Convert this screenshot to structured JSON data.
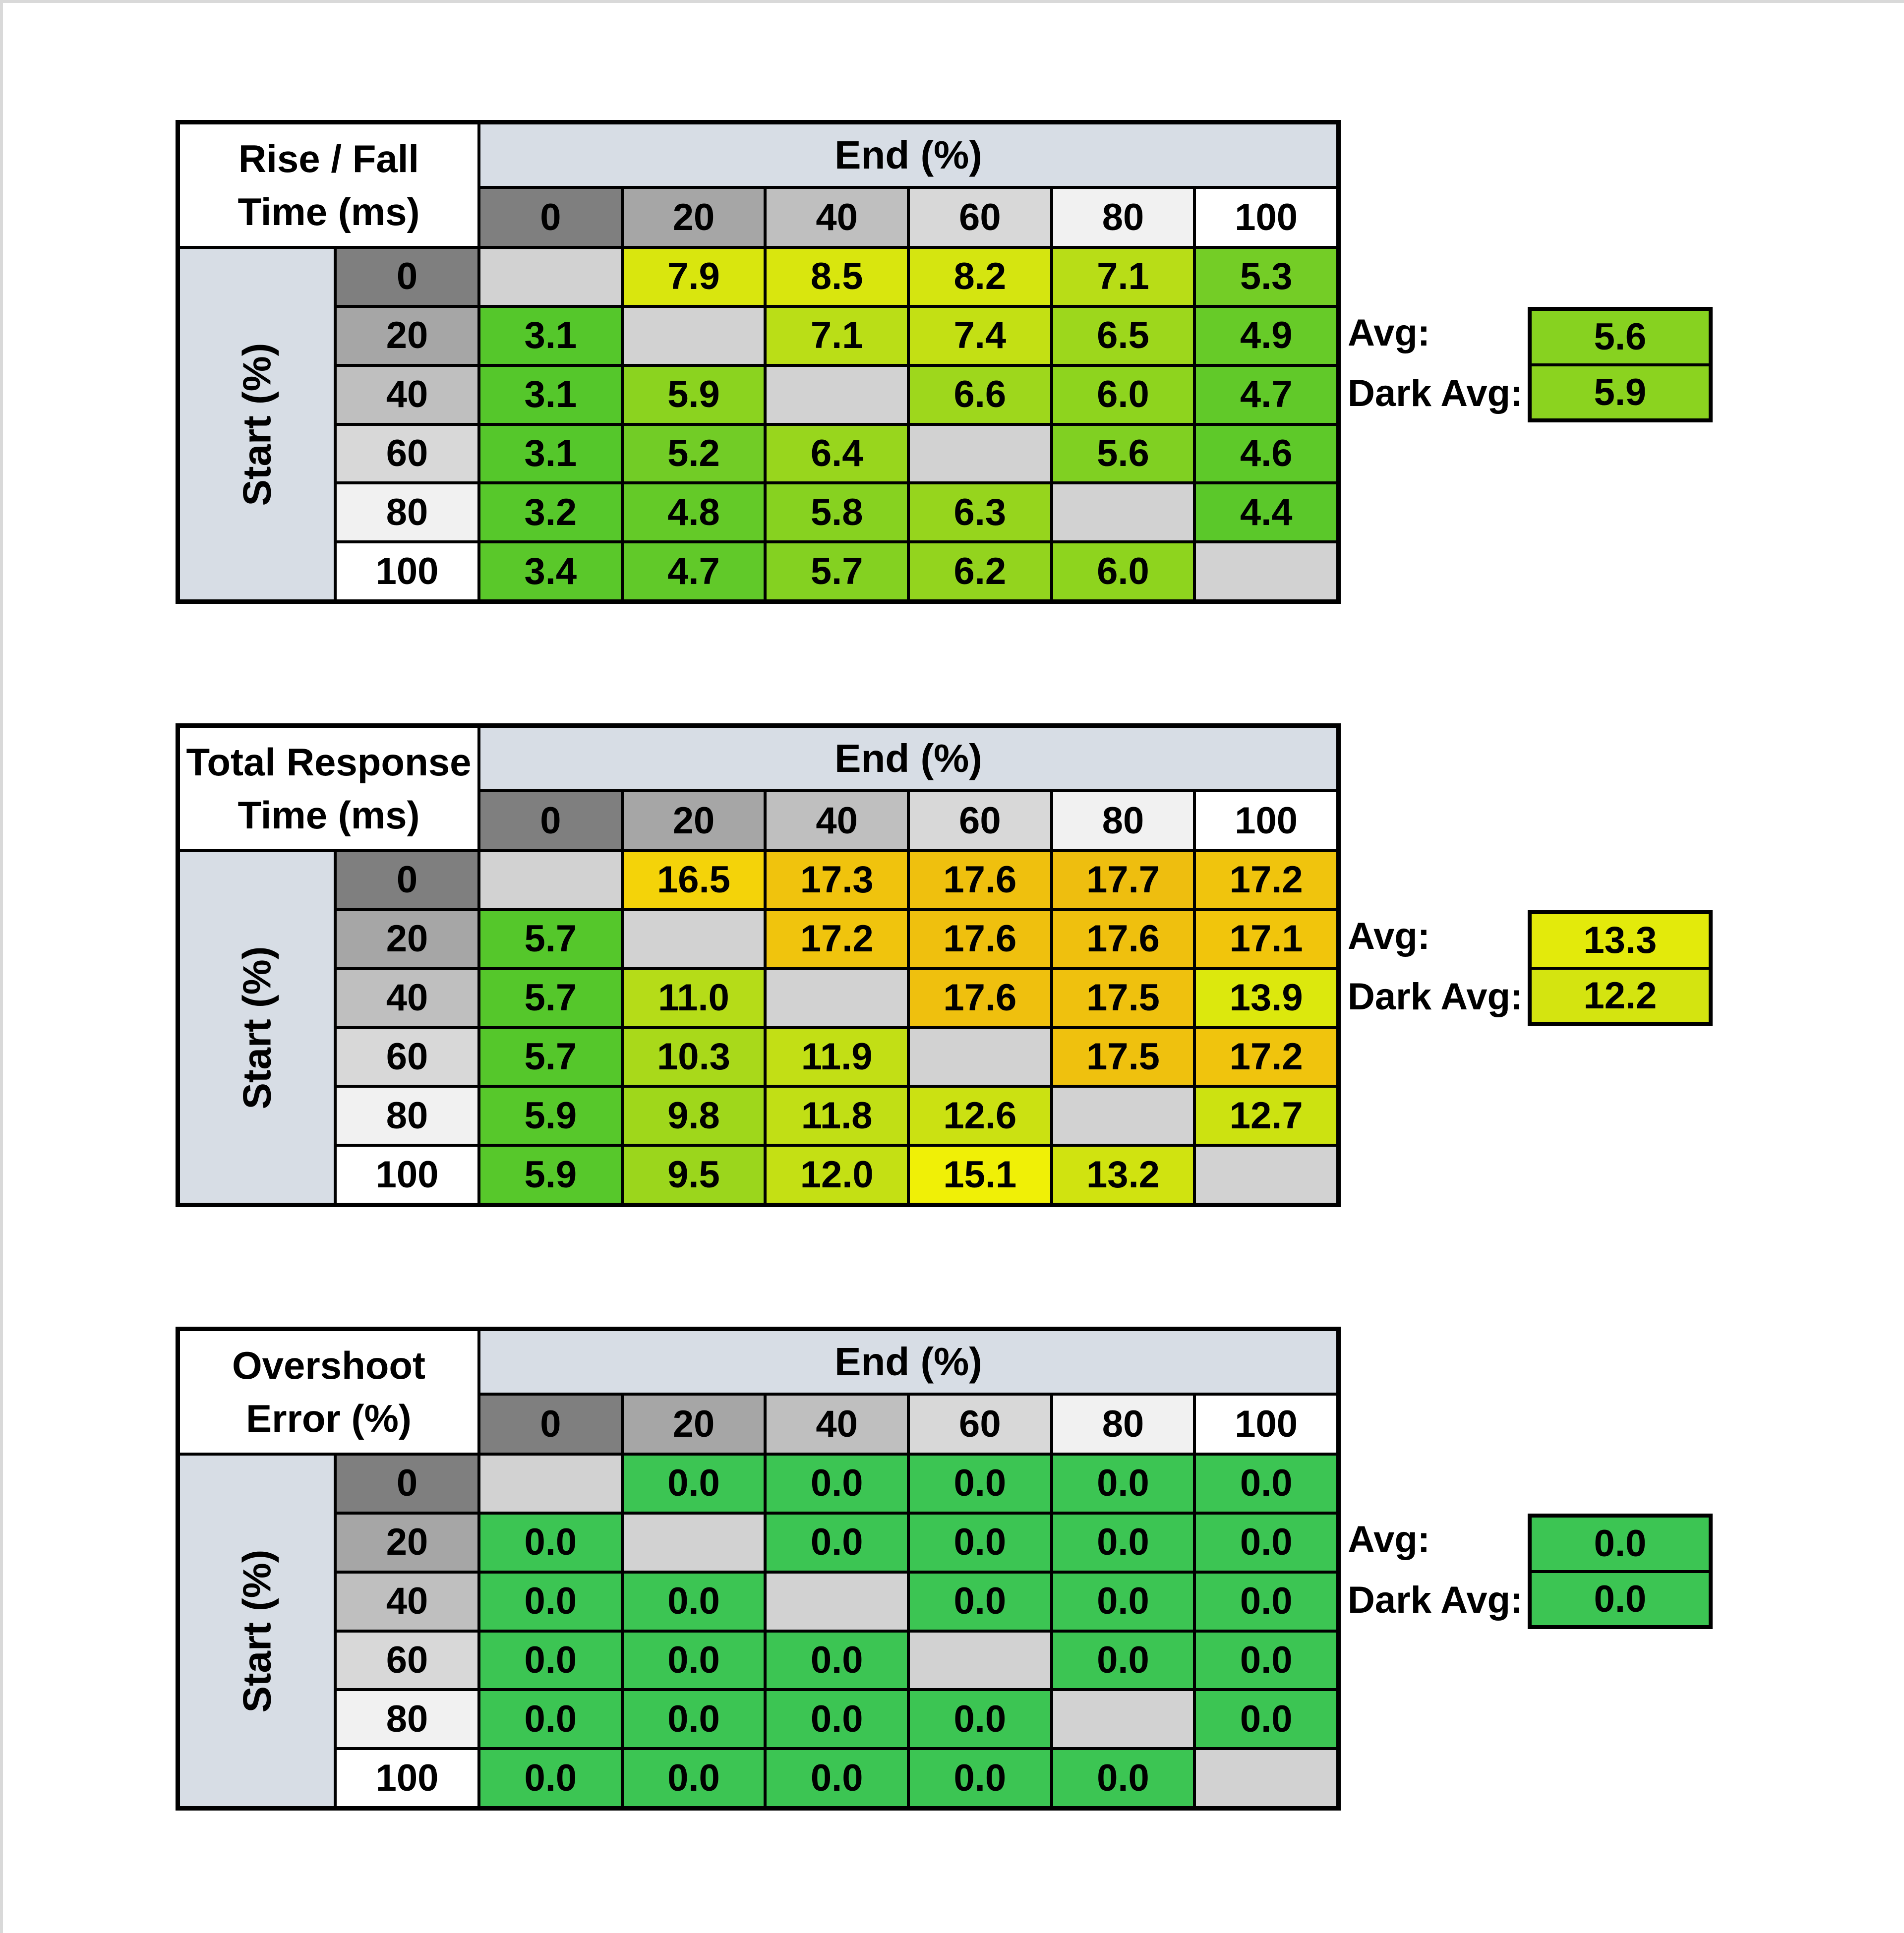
{
  "style": {
    "header_blue": "#d7dde5",
    "header_grays": [
      "#7f7f7f",
      "#a6a6a6",
      "#bfbfbf",
      "#d8d8d8",
      "#f1f1f1",
      "#ffffff"
    ],
    "blank_cell": "#d2d2d2",
    "grid_line": "#000000",
    "page_edge": "#d9d9d9"
  },
  "chart_data": [
    {
      "type": "heatmap",
      "title": [
        "Rise / Fall",
        "Time (ms)"
      ],
      "x_axis_label": "End (%)",
      "y_axis_label": "Start (%)",
      "x_categories": [
        "0",
        "20",
        "40",
        "60",
        "80",
        "100"
      ],
      "y_categories": [
        "0",
        "20",
        "40",
        "60",
        "80",
        "100"
      ],
      "values": [
        [
          null,
          7.9,
          8.5,
          8.2,
          7.1,
          5.3
        ],
        [
          3.1,
          null,
          7.1,
          7.4,
          6.5,
          4.9
        ],
        [
          3.1,
          5.9,
          null,
          6.6,
          6.0,
          4.7
        ],
        [
          3.1,
          5.2,
          6.4,
          null,
          5.6,
          4.6
        ],
        [
          3.2,
          4.8,
          5.8,
          6.3,
          null,
          4.4
        ],
        [
          3.4,
          4.7,
          5.7,
          6.2,
          6.0,
          null
        ]
      ],
      "cell_colors": [
        [
          "",
          "#d9e60e",
          "#d9e60e",
          "#d5e510",
          "#b8dd17",
          "#74cd26"
        ],
        [
          "#55c72b",
          "",
          "#bade17",
          "#c3e014",
          "#9dd71c",
          "#67cb28"
        ],
        [
          "#55c72b",
          "#8bd31f",
          "",
          "#9ed71c",
          "#8ed41e",
          "#61c929"
        ],
        [
          "#55c72b",
          "#72cc26",
          "#98d61d",
          "",
          "#80d022",
          "#5ec929"
        ],
        [
          "#57c82b",
          "#64ca28",
          "#87d220",
          "#96d51d",
          "",
          "#5bc82a"
        ],
        [
          "#5ac82a",
          "#61c929",
          "#84d121",
          "#93d41e",
          "#8ed41e",
          ""
        ]
      ],
      "avg": {
        "label": "Avg:",
        "value": "5.6",
        "color": "#87d220"
      },
      "dark_avg": {
        "label": "Dark Avg:",
        "value": "5.9",
        "color": "#8bd31f"
      }
    },
    {
      "type": "heatmap",
      "title": [
        "Total Response",
        "Time (ms)"
      ],
      "x_axis_label": "End (%)",
      "y_axis_label": "Start (%)",
      "x_categories": [
        "0",
        "20",
        "40",
        "60",
        "80",
        "100"
      ],
      "y_categories": [
        "0",
        "20",
        "40",
        "60",
        "80",
        "100"
      ],
      "values": [
        [
          null,
          16.5,
          17.3,
          17.6,
          17.7,
          17.2
        ],
        [
          5.7,
          null,
          17.2,
          17.6,
          17.6,
          17.1
        ],
        [
          5.7,
          11.0,
          null,
          17.6,
          17.5,
          13.9
        ],
        [
          5.7,
          10.3,
          11.9,
          null,
          17.5,
          17.2
        ],
        [
          5.9,
          9.8,
          11.8,
          12.6,
          null,
          12.7
        ],
        [
          5.9,
          9.5,
          12.0,
          15.1,
          13.2,
          null
        ]
      ],
      "cell_colors": [
        [
          "",
          "#f4d309",
          "#f0c30d",
          "#efc00e",
          "#eebe0f",
          "#f0c40d"
        ],
        [
          "#55c72b",
          "",
          "#f0c40d",
          "#efc00e",
          "#efc00e",
          "#f1c50c"
        ],
        [
          "#55c72b",
          "#b5dc18",
          "",
          "#efc00e",
          "#efc10e",
          "#dce80d"
        ],
        [
          "#55c72b",
          "#a9d91a",
          "#c2df15",
          "",
          "#efc10e",
          "#f0c40d"
        ],
        [
          "#57c82b",
          "#9fd71b",
          "#c1df15",
          "#cbe112",
          "",
          "#cce211"
        ],
        [
          "#57c82b",
          "#9bd61c",
          "#c4e014",
          "#f0f006",
          "#d0e310",
          ""
        ]
      ],
      "avg": {
        "label": "Avg:",
        "value": "13.3",
        "color": "#e3ea0b"
      },
      "dark_avg": {
        "label": "Dark Avg:",
        "value": "12.2",
        "color": "#d4e410"
      }
    },
    {
      "type": "heatmap",
      "title": [
        "Overshoot",
        "Error (%)"
      ],
      "x_axis_label": "End (%)",
      "y_axis_label": "Start (%)",
      "x_categories": [
        "0",
        "20",
        "40",
        "60",
        "80",
        "100"
      ],
      "y_categories": [
        "0",
        "20",
        "40",
        "60",
        "80",
        "100"
      ],
      "values": [
        [
          null,
          0.0,
          0.0,
          0.0,
          0.0,
          0.0
        ],
        [
          0.0,
          null,
          0.0,
          0.0,
          0.0,
          0.0
        ],
        [
          0.0,
          0.0,
          null,
          0.0,
          0.0,
          0.0
        ],
        [
          0.0,
          0.0,
          0.0,
          null,
          0.0,
          0.0
        ],
        [
          0.0,
          0.0,
          0.0,
          0.0,
          null,
          0.0
        ],
        [
          0.0,
          0.0,
          0.0,
          0.0,
          0.0,
          null
        ]
      ],
      "cell_colors": [
        [
          "",
          "#3cc553",
          "#3cc553",
          "#3cc553",
          "#3cc553",
          "#3cc553"
        ],
        [
          "#3cc553",
          "",
          "#3cc553",
          "#3cc553",
          "#3cc553",
          "#3cc553"
        ],
        [
          "#3cc553",
          "#3cc553",
          "",
          "#3cc553",
          "#3cc553",
          "#3cc553"
        ],
        [
          "#3cc553",
          "#3cc553",
          "#3cc553",
          "",
          "#3cc553",
          "#3cc553"
        ],
        [
          "#3cc553",
          "#3cc553",
          "#3cc553",
          "#3cc553",
          "",
          "#3cc553"
        ],
        [
          "#3cc553",
          "#3cc553",
          "#3cc553",
          "#3cc553",
          "#3cc553",
          ""
        ]
      ],
      "avg": {
        "label": "Avg:",
        "value": "0.0",
        "color": "#3cc553"
      },
      "dark_avg": {
        "label": "Dark Avg:",
        "value": "0.0",
        "color": "#3cc553"
      }
    }
  ]
}
